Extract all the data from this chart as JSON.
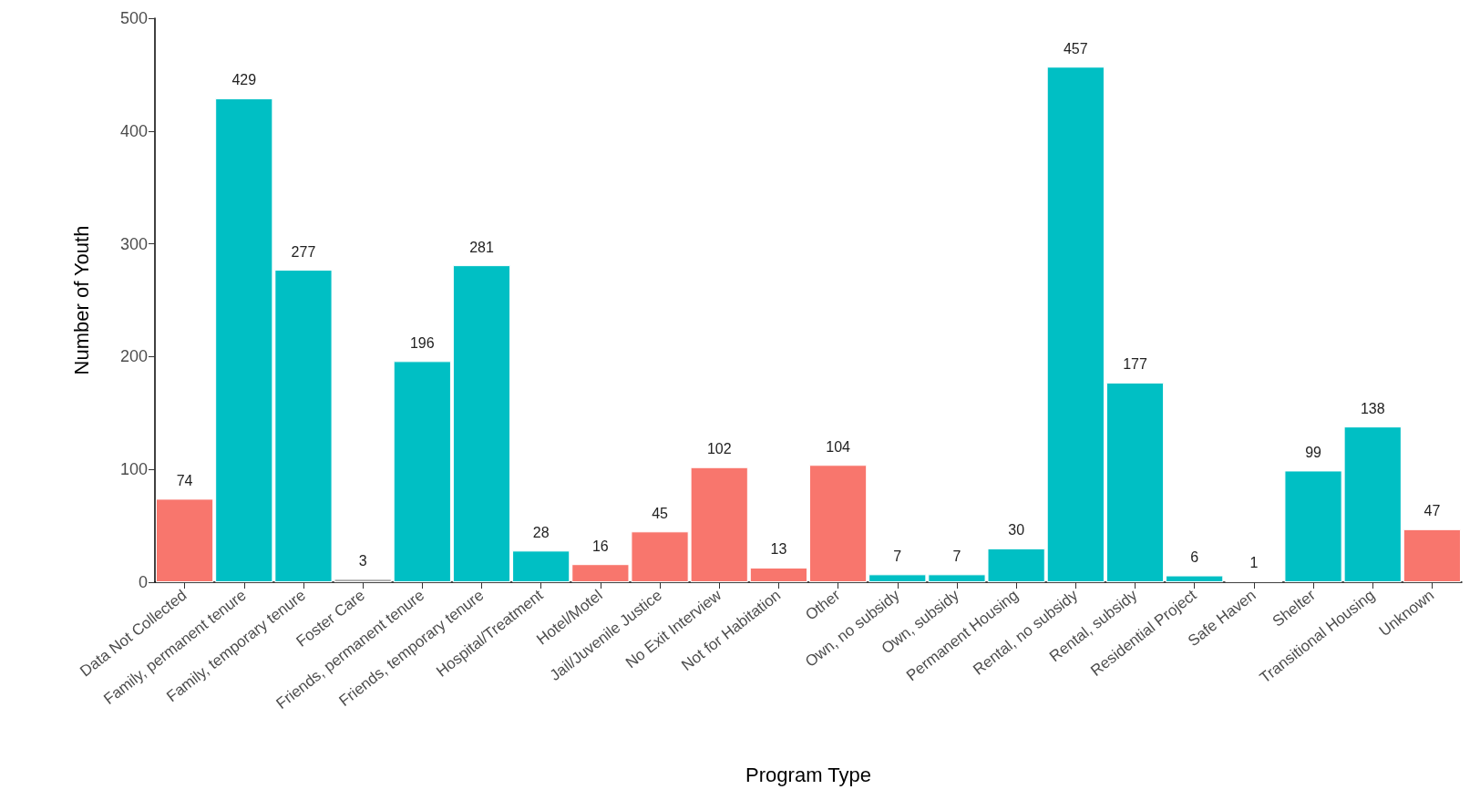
{
  "chart_data": {
    "type": "bar",
    "xlabel": "Program Type",
    "ylabel": "Number of Youth",
    "categories": [
      "Data Not Collected",
      "Family, permanent tenure",
      "Family, temporary tenure",
      "Foster Care",
      "Friends, permanent tenure",
      "Friends, temporary tenure",
      "Hospital/Treatment",
      "Hotel/Motel",
      "Jail/Juvenile Justice",
      "No Exit Interview",
      "Not for Habitation",
      "Other",
      "Own, no subsidy",
      "Own, subsidy",
      "Permanent Housing",
      "Rental, no subsidy",
      "Rental, subsidy",
      "Residential Project",
      "Safe Haven",
      "Shelter",
      "Transitional Housing",
      "Unknown"
    ],
    "values": [
      74,
      429,
      277,
      3,
      196,
      281,
      28,
      16,
      45,
      102,
      13,
      104,
      7,
      7,
      30,
      457,
      177,
      6,
      1,
      99,
      138,
      47
    ],
    "colors": [
      "#f8766d",
      "#00bfc4",
      "#00bfc4",
      "#a8a8a8",
      "#00bfc4",
      "#00bfc4",
      "#00bfc4",
      "#f8766d",
      "#f8766d",
      "#f8766d",
      "#f8766d",
      "#f8766d",
      "#00bfc4",
      "#00bfc4",
      "#00bfc4",
      "#00bfc4",
      "#00bfc4",
      "#00bfc4",
      "#a8a8a8",
      "#00bfc4",
      "#00bfc4",
      "#f8766d"
    ],
    "ylim": [
      0,
      500
    ],
    "yticks": [
      0,
      100,
      200,
      300,
      400,
      500
    ],
    "grid": false,
    "data_labels": true
  }
}
